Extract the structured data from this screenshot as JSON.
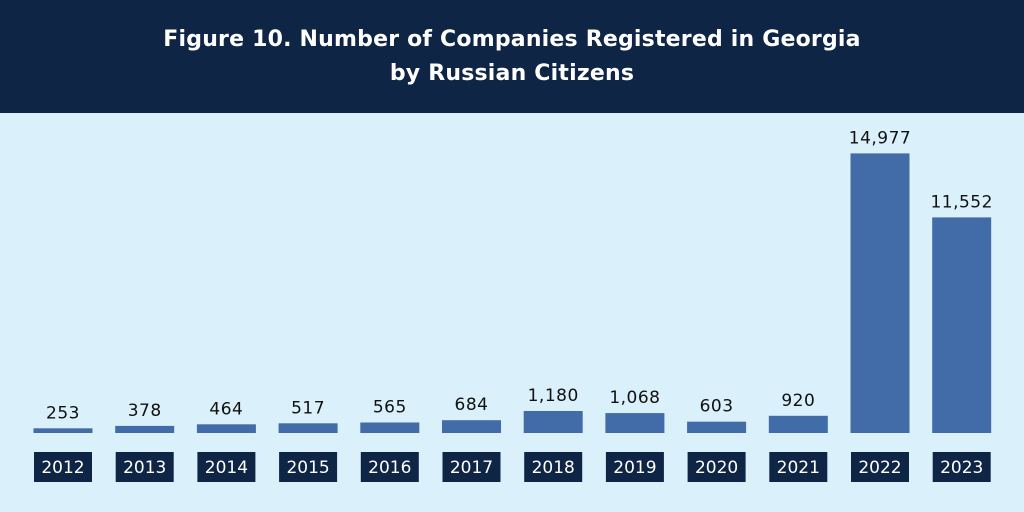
{
  "colors": {
    "header_bg": "#0f2546",
    "plot_bg": "#daf0fa",
    "bar": "#416ca7",
    "category_box": "#0f2546"
  },
  "chart_data": {
    "type": "bar",
    "title_line1": "Figure 10. Number of Companies Registered in Georgia",
    "title_line2": "by Russian Citizens",
    "categories": [
      "2012",
      "2013",
      "2014",
      "2015",
      "2016",
      "2017",
      "2018",
      "2019",
      "2020",
      "2021",
      "2022",
      "2023"
    ],
    "values": [
      253,
      378,
      464,
      517,
      565,
      684,
      1180,
      1068,
      603,
      920,
      14977,
      11552
    ],
    "value_labels": [
      "253",
      "378",
      "464",
      "517",
      "565",
      "684",
      "1,180",
      "1,068",
      "603",
      "920",
      "14,977",
      "11,552"
    ],
    "ylim": [
      0,
      15000
    ],
    "grid": false,
    "legend": "none"
  }
}
